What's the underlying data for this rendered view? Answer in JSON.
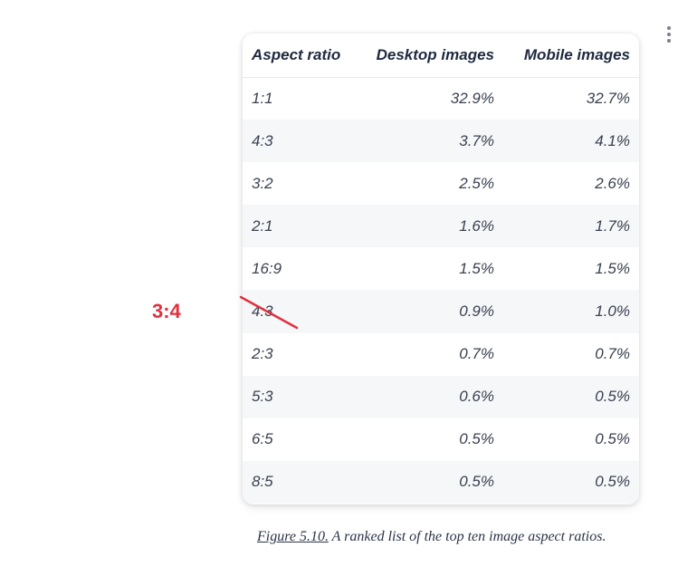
{
  "table": {
    "headers": [
      "Aspect ratio",
      "Desktop images",
      "Mobile images"
    ],
    "rows": [
      [
        "1:1",
        "32.9%",
        "32.7%"
      ],
      [
        "4:3",
        "3.7%",
        "4.1%"
      ],
      [
        "3:2",
        "2.5%",
        "2.6%"
      ],
      [
        "2:1",
        "1.6%",
        "1.7%"
      ],
      [
        "16:9",
        "1.5%",
        "1.5%"
      ],
      [
        "4:3",
        "0.9%",
        "1.0%"
      ],
      [
        "2:3",
        "0.7%",
        "0.7%"
      ],
      [
        "5:3",
        "0.6%",
        "0.5%"
      ],
      [
        "6:5",
        "0.5%",
        "0.5%"
      ],
      [
        "8:5",
        "0.5%",
        "0.5%"
      ]
    ]
  },
  "annotation": {
    "label": "3:4",
    "color": "#e0313f"
  },
  "caption": {
    "figure_ref": "Figure 5.10.",
    "text": " A ranked list of the top ten image aspect ratios."
  },
  "icons": {
    "menu": "more-vertical-icon"
  }
}
